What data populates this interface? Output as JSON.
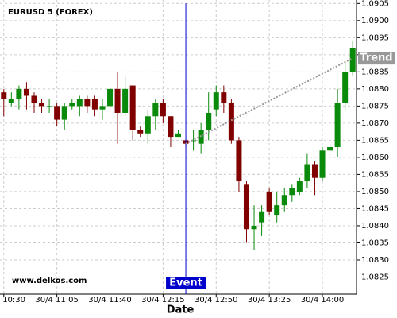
{
  "chart_data": {
    "type": "candlestick",
    "title": "EURUSD 5 (FOREX)",
    "x_label": "Date",
    "watermark": "www.delkos.com",
    "categories": [
      "30/4 10:30",
      null,
      null,
      null,
      null,
      null,
      null,
      "30/4 11:05",
      null,
      null,
      null,
      null,
      null,
      null,
      "30/4 11:40",
      null,
      null,
      null,
      null,
      null,
      null,
      "30/4 12:15",
      null,
      null,
      null,
      null,
      null,
      null,
      "30/4 12:50",
      null,
      null,
      null,
      null,
      null,
      null,
      "30/4 13:25",
      null,
      null,
      null,
      null,
      null,
      null,
      "30/4 14:00",
      null,
      null,
      null,
      null
    ],
    "open": [
      1.0879,
      1.0876,
      1.0877,
      1.088,
      1.0878,
      1.0876,
      1.0875,
      1.0875,
      1.0871,
      1.0875,
      1.0875,
      1.0877,
      1.0877,
      1.0874,
      1.0875,
      1.088,
      1.0873,
      1.0881,
      1.0868,
      1.0867,
      1.0872,
      1.0876,
      1.0872,
      1.0866,
      1.0865,
      1.0865,
      1.0864,
      1.0868,
      1.0874,
      1.0879,
      1.0876,
      1.0865,
      1.0852,
      1.0839,
      1.0841,
      1.085,
      1.0843,
      1.0846,
      1.0849,
      1.085,
      1.0853,
      1.0858,
      1.0854,
      1.0862,
      1.0863,
      1.0876,
      1.0885
    ],
    "high": [
      1.088,
      1.0879,
      1.0881,
      1.0882,
      1.0879,
      1.0877,
      1.0877,
      1.0876,
      1.0876,
      1.0877,
      1.0878,
      1.0878,
      1.0878,
      1.0877,
      1.0882,
      1.0885,
      1.0884,
      1.0881,
      1.0869,
      1.0874,
      1.0877,
      1.0877,
      1.0872,
      1.0868,
      1.0865,
      1.0868,
      1.087,
      1.0879,
      1.0881,
      1.0881,
      1.0877,
      1.0866,
      1.0853,
      1.0846,
      1.0846,
      1.0851,
      1.085,
      1.0851,
      1.0852,
      1.0854,
      1.0861,
      1.0859,
      1.0863,
      1.0864,
      1.088,
      1.0888,
      1.0894
    ],
    "low": [
      1.0872,
      1.0875,
      1.0874,
      1.0874,
      1.0873,
      1.0873,
      1.0873,
      1.0869,
      1.0868,
      1.0874,
      1.0872,
      1.0873,
      1.0872,
      1.0871,
      1.0873,
      1.0864,
      1.0872,
      1.0865,
      1.0866,
      1.0864,
      1.0868,
      1.087,
      1.0863,
      1.0866,
      1.0863,
      1.0862,
      1.0861,
      1.0865,
      1.0872,
      1.0873,
      1.0864,
      1.085,
      1.0835,
      1.0833,
      1.0837,
      1.0843,
      1.0841,
      1.0844,
      1.0847,
      1.0849,
      1.0851,
      1.0849,
      1.0853,
      1.086,
      1.086,
      1.0874,
      1.0884
    ],
    "close": [
      1.0877,
      1.0877,
      1.088,
      1.0878,
      1.0876,
      1.0875,
      1.0875,
      1.0871,
      1.0875,
      1.0876,
      1.0877,
      1.0875,
      1.0874,
      1.0875,
      1.088,
      1.0873,
      1.088,
      1.0868,
      1.0867,
      1.0872,
      1.0876,
      1.0872,
      1.0866,
      1.0867,
      1.0864,
      1.0865,
      1.0868,
      1.0873,
      1.0879,
      1.0876,
      1.0865,
      1.0853,
      1.0839,
      1.084,
      1.0844,
      1.0844,
      1.0846,
      1.0849,
      1.0851,
      1.0853,
      1.0858,
      1.0854,
      1.0862,
      1.0863,
      1.0876,
      1.0885,
      1.0892
    ],
    "up_color": "#0a8a0a",
    "down_color": "#800000",
    "ylim": [
      1.082,
      1.0906
    ],
    "yticks": [
      {
        "value": 1.0825,
        "label": "1.0825"
      },
      {
        "value": 1.083,
        "label": "1.0830"
      },
      {
        "value": 1.0835,
        "label": "1.0835"
      },
      {
        "value": 1.084,
        "label": "1.0840"
      },
      {
        "value": 1.0845,
        "label": "1.0845"
      },
      {
        "value": 1.085,
        "label": "1.0850"
      },
      {
        "value": 1.0855,
        "label": "1.0855"
      },
      {
        "value": 1.086,
        "label": "1.0860"
      },
      {
        "value": 1.0865,
        "label": "1.0865"
      },
      {
        "value": 1.087,
        "label": "1.0870"
      },
      {
        "value": 1.0875,
        "label": "1.0875"
      },
      {
        "value": 1.088,
        "label": "1.0880"
      },
      {
        "value": 1.0885,
        "label": "1.0885"
      },
      {
        "value": 1.089,
        "label": "1.0890"
      },
      {
        "value": 1.0895,
        "label": "1.0895"
      },
      {
        "value": 1.09,
        "label": "1.0900"
      },
      {
        "value": 1.0905,
        "label": "1.0905"
      }
    ],
    "grid": true,
    "event": {
      "label": "Event",
      "index": 24,
      "color": "#0000cc"
    },
    "trend": {
      "label": "Trend",
      "start_index": 24,
      "start": 1.0864,
      "end": 1.0889,
      "color": "#999999"
    }
  }
}
